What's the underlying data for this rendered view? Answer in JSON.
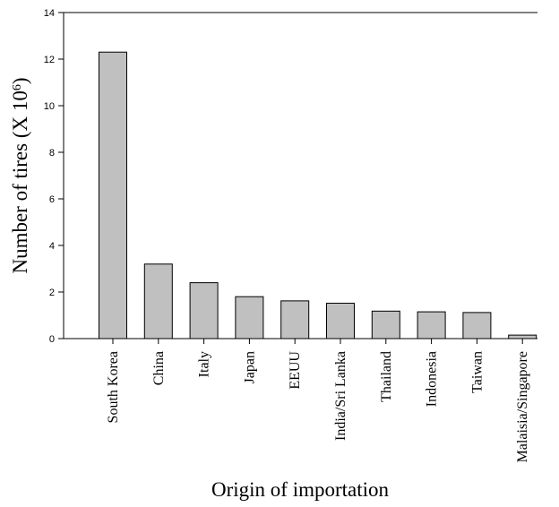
{
  "chart_data": {
    "type": "bar",
    "title": "",
    "xlabel": "Origin of importation",
    "ylabel_main": "Number of tires (X 10",
    "ylabel_exp": "6",
    "ylabel_close": ")",
    "ylim": [
      0,
      14
    ],
    "yticks": [
      "0",
      "2",
      "4",
      "6",
      "8",
      "10",
      "12",
      "14"
    ],
    "categories": [
      "South Korea",
      "China",
      "Italy",
      "Japan",
      "EEUU",
      "India/Sri Lanka",
      "Thailand",
      "Indonesia",
      "Taiwan",
      "Malaisia/Singapore"
    ],
    "values": [
      12.3,
      3.2,
      2.4,
      1.8,
      1.62,
      1.52,
      1.18,
      1.15,
      1.12,
      0.15
    ],
    "grid": false,
    "legend": "none",
    "bar_color": "#c0c0c0"
  }
}
